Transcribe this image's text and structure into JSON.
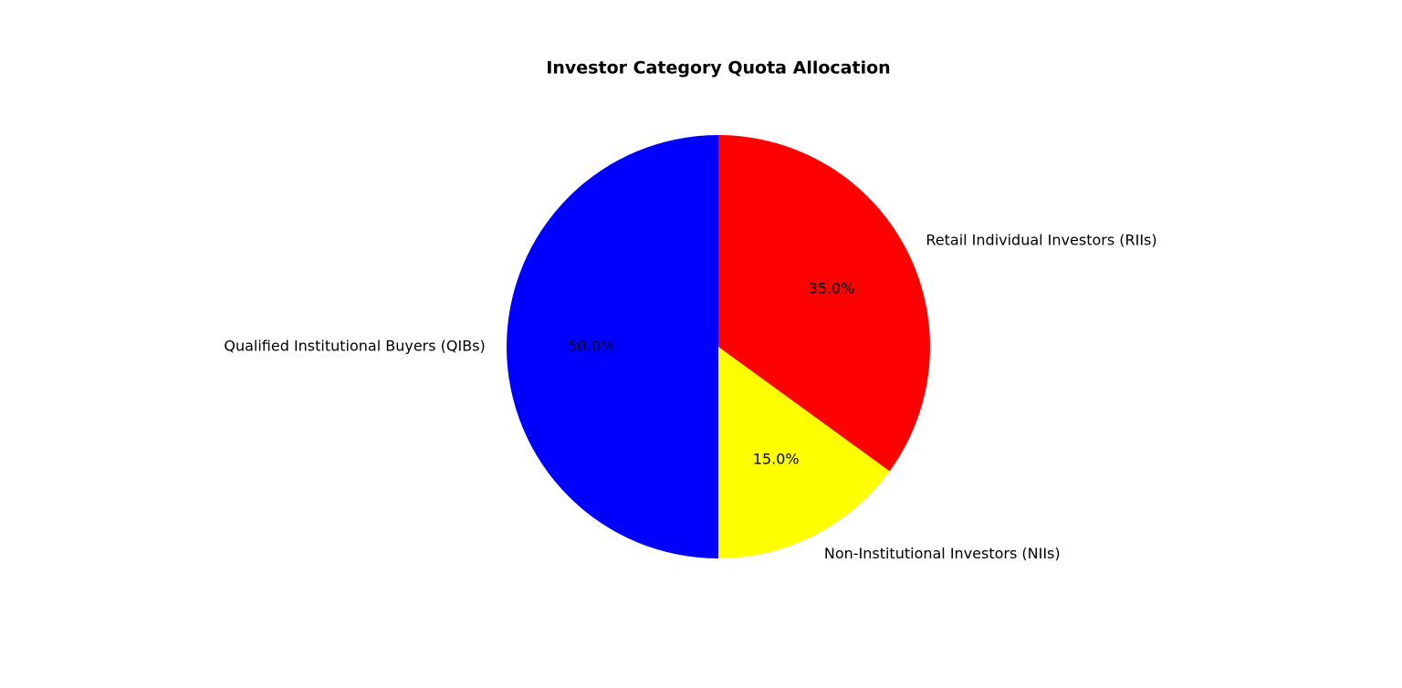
{
  "chart_data": {
    "type": "pie",
    "title": "Investor Category Quota Allocation",
    "categories": [
      "Qualified Institutional Buyers (QIBs)",
      "Non-Institutional Investors (NIIs)",
      "Retail Individual Investors (RIIs)"
    ],
    "values": [
      50,
      15,
      35
    ],
    "value_labels": [
      "50.0%",
      "15.0%",
      "35.0%"
    ],
    "colors": [
      "#0000ff",
      "#ffff00",
      "#ff0000"
    ],
    "start_angle": 90,
    "counterclockwise": true
  }
}
